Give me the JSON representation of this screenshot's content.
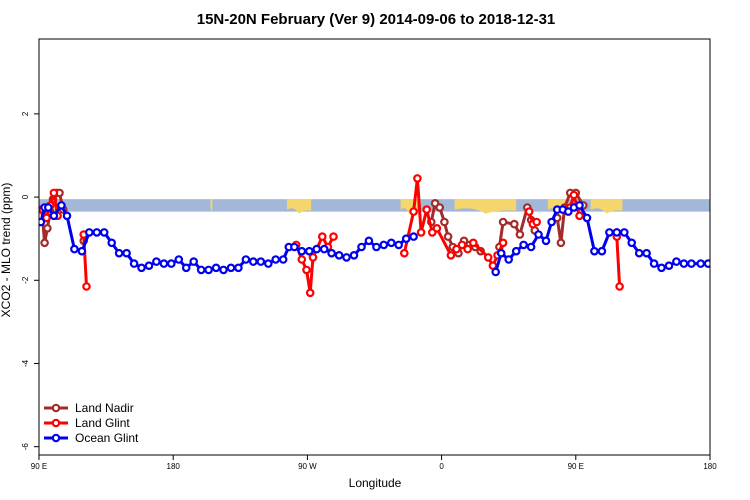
{
  "chart_data": {
    "type": "line",
    "title": "15N-20N February (Ver 9)   2014-09-06 to 2018-12-31",
    "xlabel": "Longitude",
    "ylabel": "XCO2 - MLO trend (ppm)",
    "xlim": [
      0,
      360
    ],
    "ylim": [
      -6.2,
      3.8
    ],
    "x_ticks": [
      {
        "value": 0,
        "label": "90 E"
      },
      {
        "value": 72,
        "label": "180"
      },
      {
        "value": 144,
        "label": "90 W"
      },
      {
        "value": 216,
        "label": "0"
      },
      {
        "value": 288,
        "label": "90 E"
      },
      {
        "value": 360,
        "label": "180"
      }
    ],
    "y_ticks": [
      {
        "value": 2,
        "label": "2"
      },
      {
        "value": 0,
        "label": "0"
      },
      {
        "value": -2,
        "label": "-2"
      },
      {
        "value": -4,
        "label": "-4"
      },
      {
        "value": -6,
        "label": "-6"
      }
    ],
    "legend_position": "bottom-left",
    "background_band": {
      "y_from": -0.35,
      "y_to": -0.05,
      "color": "#a3b8d8"
    },
    "land_patches": [
      {
        "x_from": 7,
        "x_to": 9
      },
      {
        "x_from": 92,
        "x_to": 93
      },
      {
        "x_from": 133,
        "x_to": 146
      },
      {
        "x_from": 194,
        "x_to": 203
      },
      {
        "x_from": 223,
        "x_to": 256
      },
      {
        "x_from": 273,
        "x_to": 284
      },
      {
        "x_from": 296,
        "x_to": 313
      }
    ],
    "series": [
      {
        "name": "Land Nadir",
        "color": "#a52a2a",
        "points": [
          [
            1.5,
            -0.3
          ],
          [
            3,
            -1.1
          ],
          [
            4.5,
            -0.75
          ],
          [
            6,
            -0.35
          ],
          [
            7.5,
            -0.05
          ],
          [
            9.5,
            0.1
          ],
          [
            11,
            0.1
          ],
          [
            13,
            -0.3
          ],
          [
            24,
            -1.05
          ],
          [
            210.5,
            -0.6
          ],
          [
            212.5,
            -0.15
          ],
          [
            215,
            -0.25
          ],
          [
            217.5,
            -0.6
          ],
          [
            219.5,
            -0.95
          ],
          [
            222,
            -1.2
          ],
          [
            225,
            -1.35
          ],
          [
            228,
            -1.05
          ],
          [
            231,
            -1.15
          ],
          [
            234,
            -1.2
          ],
          [
            237,
            -1.3
          ],
          [
            247,
            -1.2
          ],
          [
            249,
            -0.6
          ],
          [
            255,
            -0.65
          ],
          [
            258,
            -0.9
          ],
          [
            262,
            -0.25
          ],
          [
            264,
            -0.55
          ],
          [
            266,
            -0.8
          ],
          [
            278,
            -0.5
          ],
          [
            280,
            -1.1
          ],
          [
            282,
            -0.25
          ],
          [
            285,
            0.1
          ],
          [
            288,
            0.1
          ],
          [
            292,
            -0.2
          ],
          [
            310,
            -0.85
          ]
        ]
      },
      {
        "name": "Land Glint",
        "color": "#ff0000",
        "points": [
          [
            2,
            -0.3
          ],
          [
            4,
            -0.5
          ],
          [
            6,
            -0.2
          ],
          [
            8,
            0.1
          ],
          [
            10,
            -0.45
          ],
          [
            24,
            -0.9
          ],
          [
            25.5,
            -2.15
          ],
          [
            138,
            -1.15
          ],
          [
            141,
            -1.5
          ],
          [
            143.5,
            -1.75
          ],
          [
            145.5,
            -2.3
          ],
          [
            147,
            -1.45
          ],
          [
            152,
            -0.95
          ],
          [
            155,
            -1.2
          ],
          [
            158,
            -0.95
          ],
          [
            196,
            -1.35
          ],
          [
            201,
            -0.35
          ],
          [
            203,
            0.45
          ],
          [
            205,
            -0.85
          ],
          [
            208,
            -0.3
          ],
          [
            211,
            -0.85
          ],
          [
            213.5,
            -0.75
          ],
          [
            221,
            -1.4
          ],
          [
            224,
            -1.25
          ],
          [
            227,
            -1.15
          ],
          [
            230,
            -1.25
          ],
          [
            233,
            -1.1
          ],
          [
            241,
            -1.45
          ],
          [
            243.5,
            -1.65
          ],
          [
            246,
            -1.4
          ],
          [
            249,
            -1.1
          ],
          [
            263,
            -0.35
          ],
          [
            265,
            -0.65
          ],
          [
            267,
            -0.6
          ],
          [
            283,
            -0.3
          ],
          [
            285,
            -0.25
          ],
          [
            287,
            0.05
          ],
          [
            290,
            -0.45
          ],
          [
            310,
            -0.95
          ],
          [
            311.5,
            -2.15
          ]
        ]
      },
      {
        "name": "Ocean Glint",
        "color": "#0000ee",
        "points": [
          [
            1,
            -0.6
          ],
          [
            3,
            -0.25
          ],
          [
            5,
            -0.25
          ],
          [
            8,
            -0.45
          ],
          [
            12,
            -0.2
          ],
          [
            15,
            -0.45
          ],
          [
            19,
            -1.25
          ],
          [
            23,
            -1.3
          ],
          [
            27,
            -0.85
          ],
          [
            31,
            -0.85
          ],
          [
            35,
            -0.85
          ],
          [
            39,
            -1.1
          ],
          [
            43,
            -1.35
          ],
          [
            47,
            -1.35
          ],
          [
            51,
            -1.6
          ],
          [
            55,
            -1.7
          ],
          [
            59,
            -1.65
          ],
          [
            63,
            -1.55
          ],
          [
            67,
            -1.6
          ],
          [
            71,
            -1.6
          ],
          [
            75,
            -1.5
          ],
          [
            79,
            -1.7
          ],
          [
            83,
            -1.55
          ],
          [
            87,
            -1.75
          ],
          [
            91,
            -1.75
          ],
          [
            95,
            -1.7
          ],
          [
            99,
            -1.75
          ],
          [
            103,
            -1.7
          ],
          [
            107,
            -1.7
          ],
          [
            111,
            -1.5
          ],
          [
            115,
            -1.55
          ],
          [
            119,
            -1.55
          ],
          [
            123,
            -1.6
          ],
          [
            127,
            -1.5
          ],
          [
            131,
            -1.5
          ],
          [
            134,
            -1.2
          ],
          [
            137,
            -1.2
          ],
          [
            141,
            -1.3
          ],
          [
            145,
            -1.3
          ],
          [
            149,
            -1.25
          ],
          [
            153,
            -1.25
          ],
          [
            157,
            -1.35
          ],
          [
            161,
            -1.4
          ],
          [
            165,
            -1.45
          ],
          [
            169,
            -1.4
          ],
          [
            173,
            -1.2
          ],
          [
            177,
            -1.05
          ],
          [
            181,
            -1.2
          ],
          [
            185,
            -1.15
          ],
          [
            189,
            -1.1
          ],
          [
            193,
            -1.15
          ],
          [
            197,
            -1.0
          ],
          [
            201,
            -0.95
          ],
          [
            245,
            -1.8
          ],
          [
            248,
            -1.35
          ],
          [
            252,
            -1.5
          ],
          [
            256,
            -1.3
          ],
          [
            260,
            -1.15
          ],
          [
            264,
            -1.2
          ],
          [
            268,
            -0.9
          ],
          [
            272,
            -1.05
          ],
          [
            275,
            -0.6
          ],
          [
            278,
            -0.3
          ],
          [
            281,
            -0.3
          ],
          [
            284,
            -0.35
          ],
          [
            287,
            -0.25
          ],
          [
            290,
            -0.2
          ],
          [
            294,
            -0.5
          ],
          [
            298,
            -1.3
          ],
          [
            302,
            -1.3
          ],
          [
            306,
            -0.85
          ],
          [
            310,
            -0.85
          ],
          [
            314,
            -0.85
          ],
          [
            318,
            -1.1
          ],
          [
            322,
            -1.35
          ],
          [
            326,
            -1.35
          ],
          [
            330,
            -1.6
          ],
          [
            334,
            -1.7
          ],
          [
            338,
            -1.65
          ],
          [
            342,
            -1.55
          ],
          [
            346,
            -1.6
          ],
          [
            350,
            -1.6
          ],
          [
            355,
            -1.6
          ],
          [
            359,
            -1.6
          ]
        ]
      }
    ]
  }
}
